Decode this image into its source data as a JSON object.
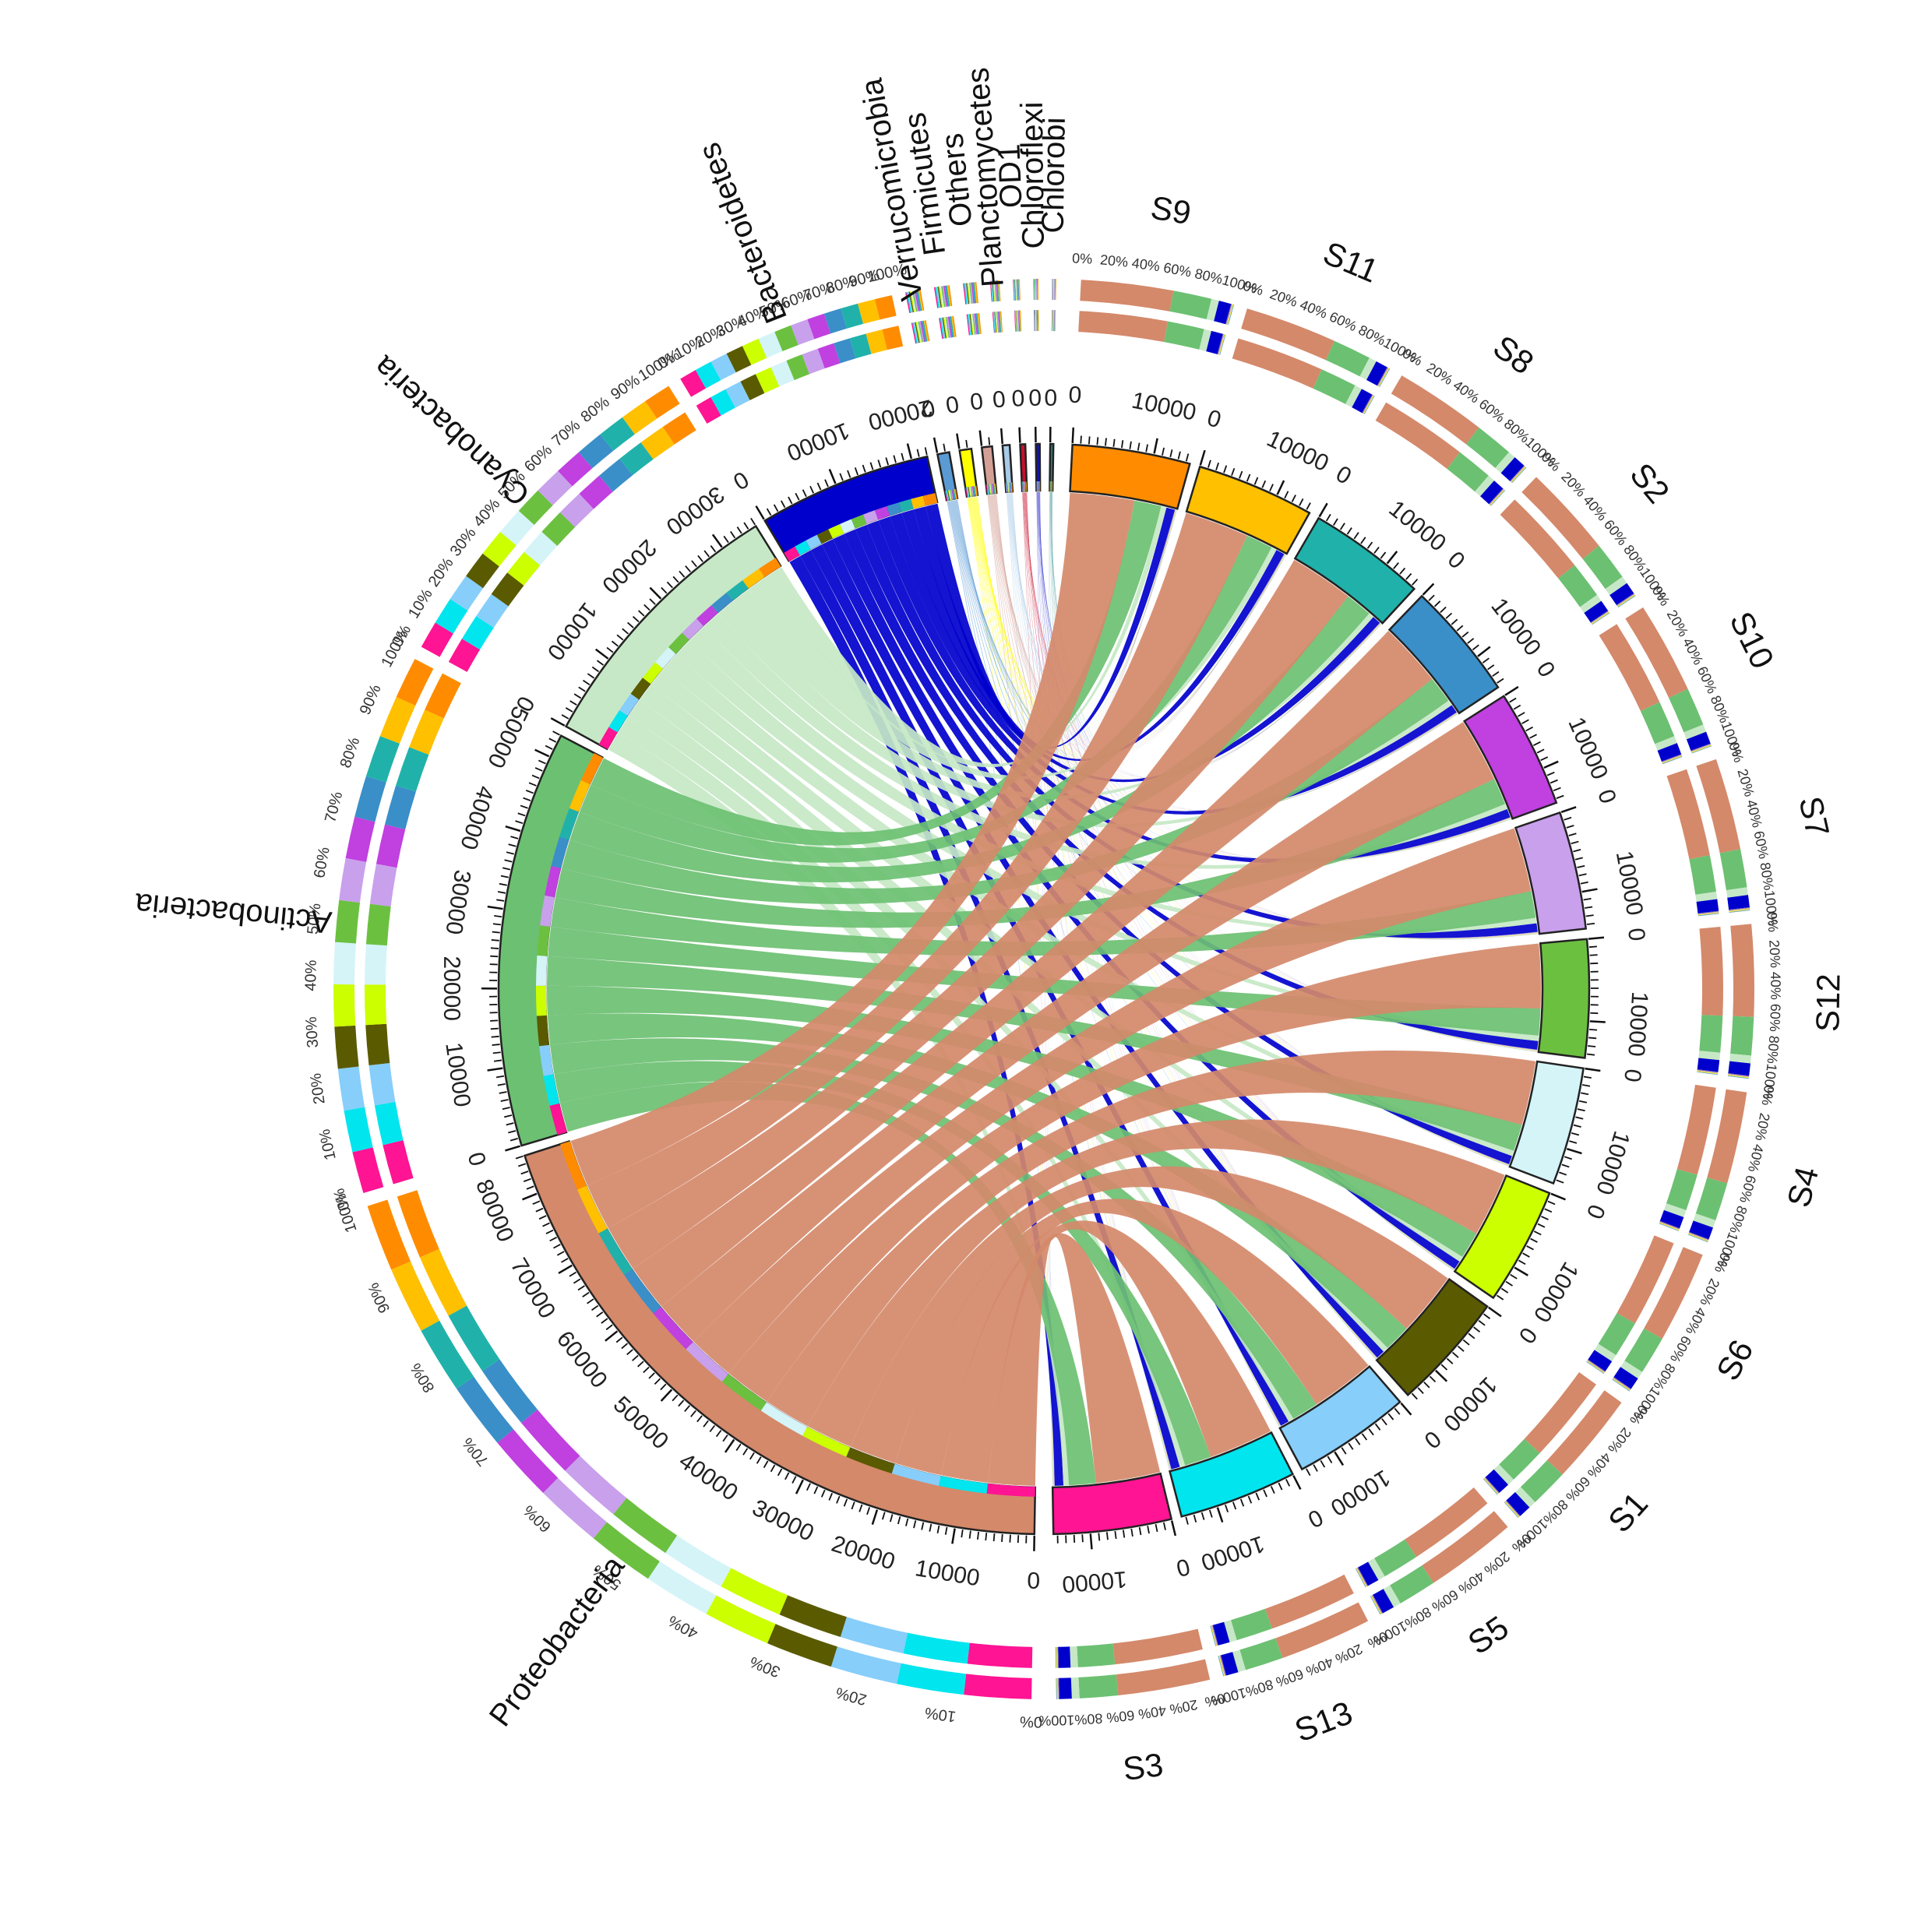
{
  "chart_data": {
    "type": "chord",
    "phyla": [
      {
        "name": "Chlorobi",
        "total": 400,
        "color": "#2e8b8b"
      },
      {
        "name": "Chloroflexi",
        "total": 500,
        "color": "#1010c8"
      },
      {
        "name": "OD1",
        "total": 650,
        "color": "#c8102e"
      },
      {
        "name": "Planctomycetes",
        "total": 900,
        "color": "#a7cbe8"
      },
      {
        "name": "Others",
        "total": 1300,
        "color": "#d4a096"
      },
      {
        "name": "Firmicutes",
        "total": 1500,
        "color": "#ffff00"
      },
      {
        "name": "Verrucomicrobia",
        "total": 1500,
        "color": "#5b9bd5"
      },
      {
        "name": "Bacteroidetes",
        "total": 22000,
        "color": "#0000cd"
      },
      {
        "name": "Cyanobacteria",
        "total": 35000,
        "color": "#c6e8c6"
      },
      {
        "name": "Actinobacteria",
        "total": 53000,
        "color": "#6cc072"
      },
      {
        "name": "Proteobacteria",
        "total": 85000,
        "color": "#d4896a"
      }
    ],
    "samples": [
      {
        "name": "S9",
        "total": 14500,
        "color": "#ff8c00"
      },
      {
        "name": "S11",
        "total": 14500,
        "color": "#ffc000"
      },
      {
        "name": "S8",
        "total": 14500,
        "color": "#20b2aa"
      },
      {
        "name": "S2",
        "total": 14500,
        "color": "#3a8fc8"
      },
      {
        "name": "S10",
        "total": 14500,
        "color": "#c040e0"
      },
      {
        "name": "S7",
        "total": 14500,
        "color": "#c9a0ec"
      },
      {
        "name": "S12",
        "total": 14500,
        "color": "#6cc040"
      },
      {
        "name": "S4",
        "total": 14500,
        "color": "#d4f4f8"
      },
      {
        "name": "S6",
        "total": 14500,
        "color": "#ccff00"
      },
      {
        "name": "S1",
        "total": 14500,
        "color": "#5a5a00"
      },
      {
        "name": "S5",
        "total": 14500,
        "color": "#87cefa"
      },
      {
        "name": "S13",
        "total": 14500,
        "color": "#00e5ee"
      },
      {
        "name": "S3",
        "total": 14500,
        "color": "#ff1493"
      }
    ],
    "sample_composition": {
      "Proteobacteria": 0.6,
      "Actinobacteria": 0.25,
      "Cyanobacteria": 0.05,
      "Bacteroidetes": 0.08,
      "Minor phyla": 0.02
    },
    "phylum_axis_ticks": [
      "0",
      "10000",
      "20000",
      "30000",
      "40000",
      "50000",
      "60000",
      "70000",
      "80000"
    ],
    "sample_axis_ticks": [
      "0",
      "10000"
    ],
    "percent_ticks": [
      "0%",
      "10%",
      "20%",
      "30%",
      "40%",
      "50%",
      "60%",
      "70%",
      "80%",
      "90%",
      "100%"
    ],
    "sample_percent_ticks": [
      "0%",
      "20%",
      "40%",
      "60%",
      "80%",
      "100%"
    ]
  }
}
